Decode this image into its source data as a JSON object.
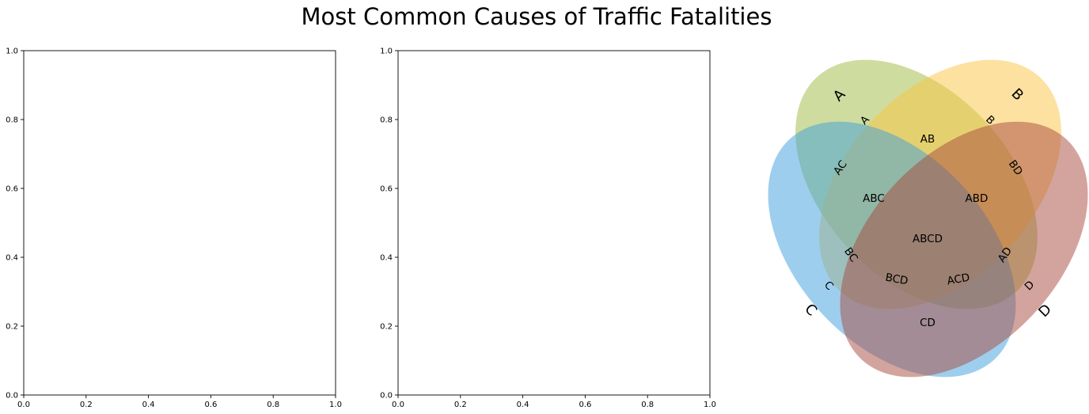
{
  "title": "Most Common Causes of Traffic Fatalities",
  "chart_data": [
    {
      "type": "scatter",
      "title": "",
      "xlabel": "",
      "ylabel": "",
      "xlim": [
        0,
        1
      ],
      "ylim": [
        0,
        1
      ],
      "xticks": [
        "0.0",
        "0.2",
        "0.4",
        "0.6",
        "0.8",
        "1.0"
      ],
      "yticks": [
        "0.0",
        "0.2",
        "0.4",
        "0.6",
        "0.8",
        "1.0"
      ],
      "series": []
    },
    {
      "type": "scatter",
      "title": "",
      "xlabel": "",
      "ylabel": "",
      "xlim": [
        0,
        1
      ],
      "ylim": [
        0,
        1
      ],
      "xticks": [
        "0.0",
        "0.2",
        "0.4",
        "0.6",
        "0.8",
        "1.0"
      ],
      "yticks": [
        "0.0",
        "0.2",
        "0.4",
        "0.6",
        "0.8",
        "1.0"
      ],
      "series": []
    },
    {
      "type": "venn",
      "sets": [
        {
          "label": "A",
          "color": "#9fb940"
        },
        {
          "label": "B",
          "color": "#fcc441"
        },
        {
          "label": "C",
          "color": "#3d9ddb"
        },
        {
          "label": "D",
          "color": "#a84a3e"
        }
      ],
      "regions": [
        "A",
        "B",
        "C",
        "D",
        "AB",
        "AC",
        "AD",
        "BC",
        "BD",
        "CD",
        "ABC",
        "ABD",
        "ACD",
        "BCD",
        "ABCD"
      ]
    }
  ]
}
